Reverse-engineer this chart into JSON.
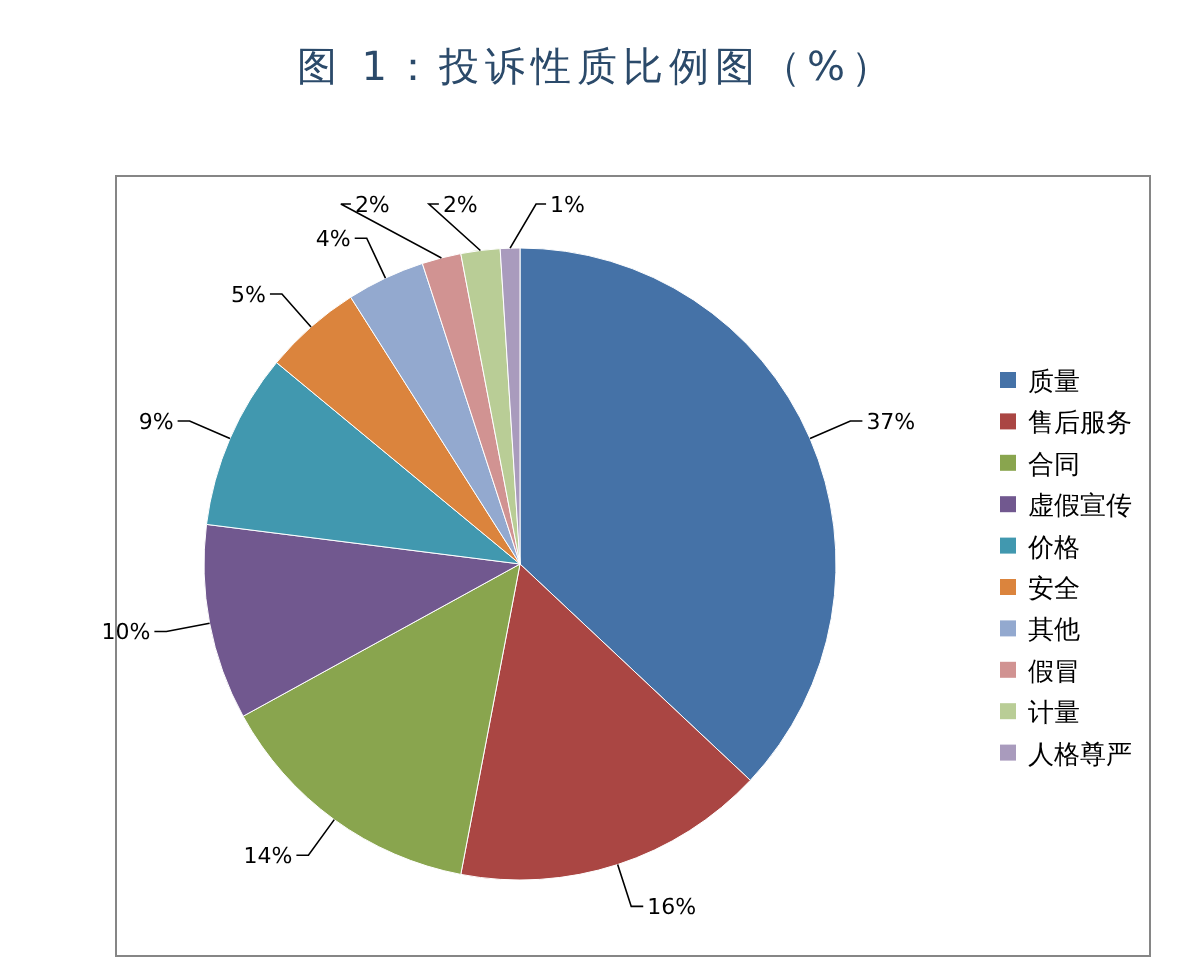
{
  "chart_data": {
    "type": "pie",
    "title": "图 1：投诉性质比例图（%）",
    "categories": [
      "质量",
      "售后服务",
      "合同",
      "虚假宣传",
      "价格",
      "安全",
      "其他",
      "假冒",
      "计量",
      "人格尊严"
    ],
    "values": [
      37,
      16,
      14,
      10,
      9,
      5,
      4,
      2,
      2,
      1
    ],
    "value_labels": [
      "37%",
      "16%",
      "14%",
      "10%",
      "9%",
      "5%",
      "4%",
      "2%",
      "2%",
      "1%"
    ],
    "colors": [
      "#4572a7",
      "#aa4643",
      "#89a54e",
      "#71588f",
      "#4198af",
      "#db843d",
      "#93a9cf",
      "#d19392",
      "#b9cd96",
      "#a99bbd"
    ],
    "legend": "right"
  }
}
